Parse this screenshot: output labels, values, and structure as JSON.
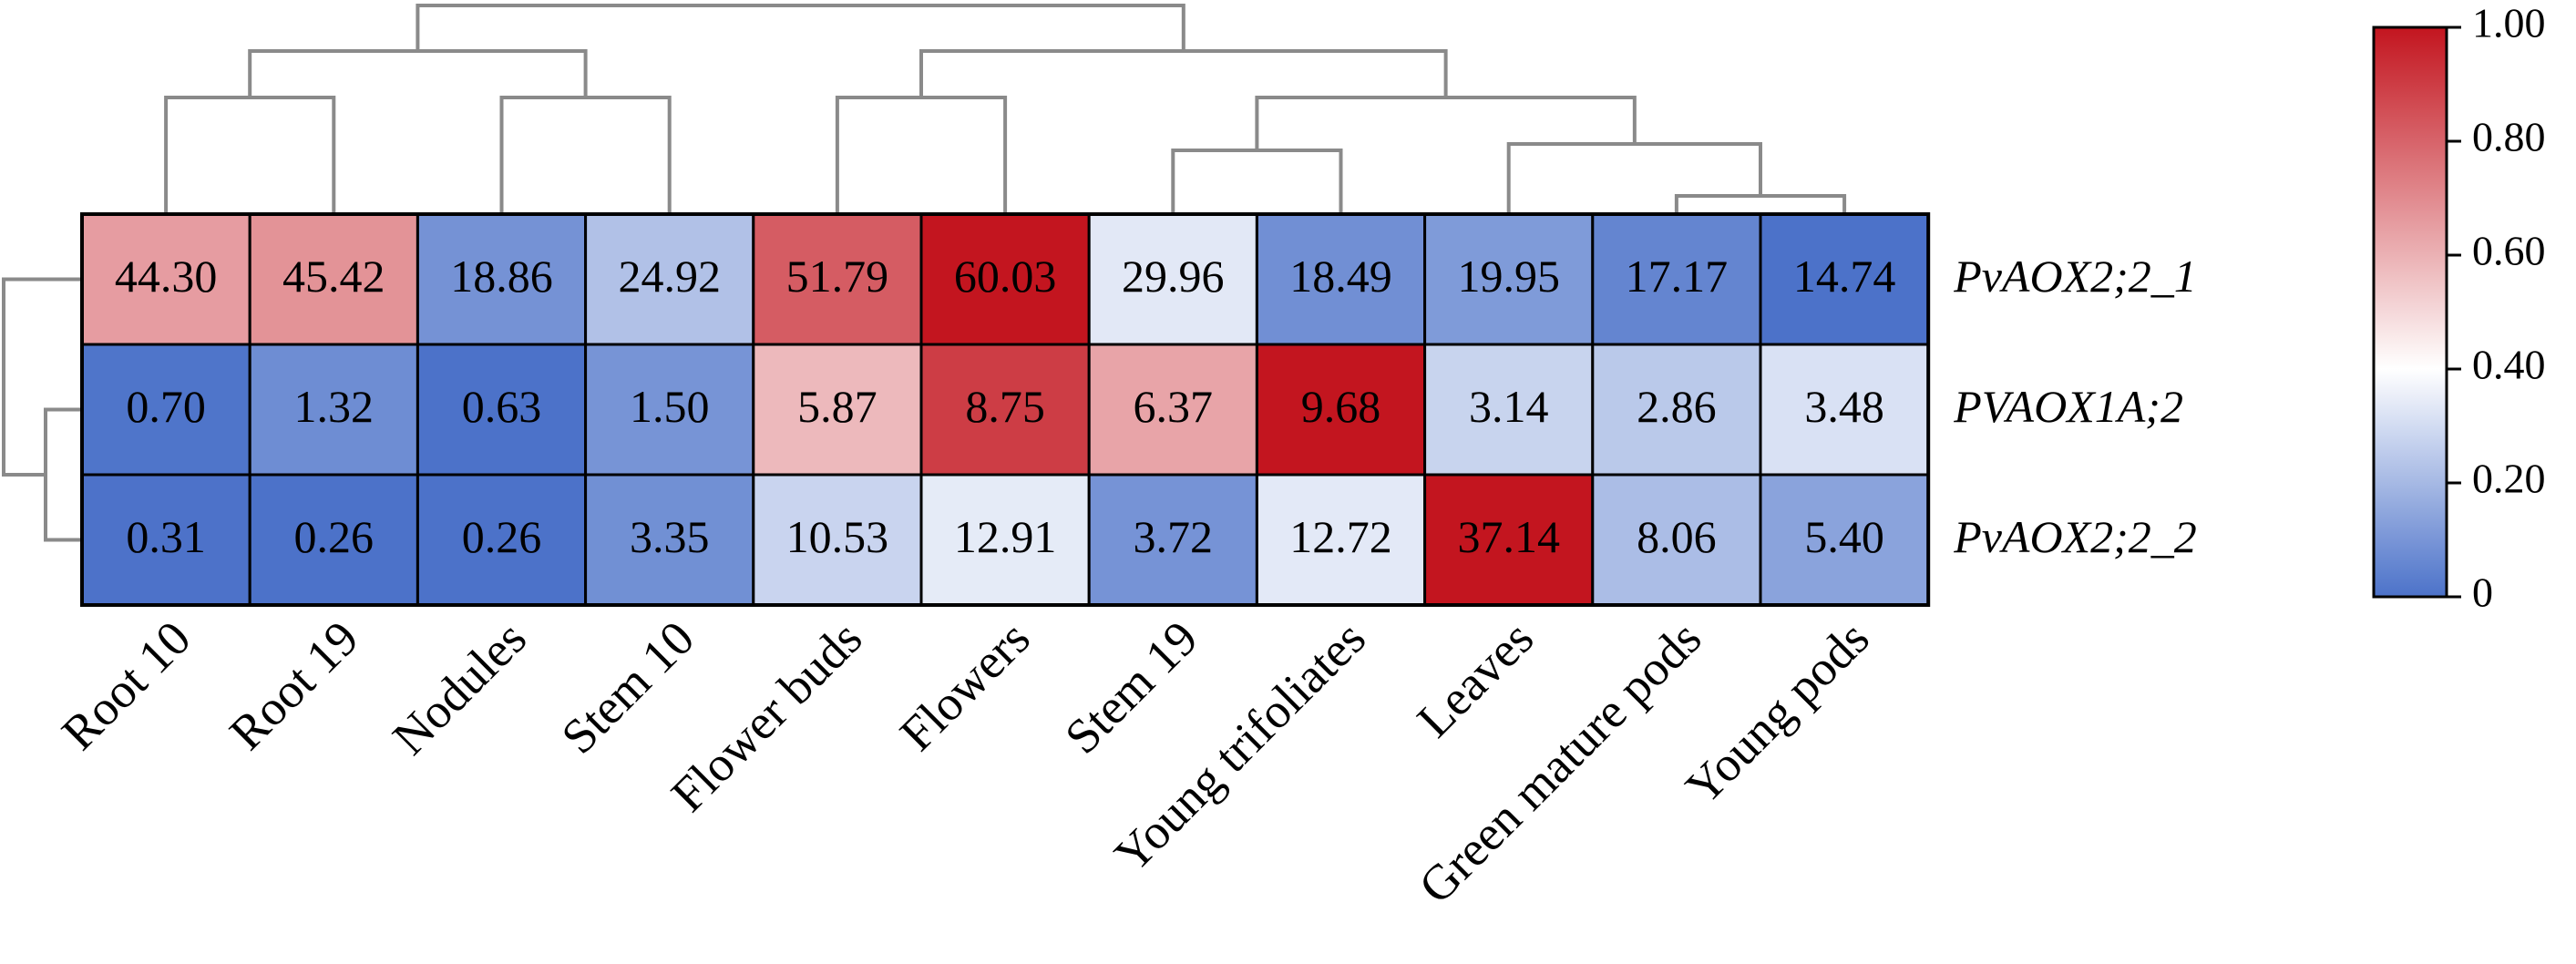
{
  "chart_data": {
    "type": "heatmap",
    "title": "",
    "xlabel": "",
    "ylabel": "",
    "columns": [
      "Root 10",
      "Root 19",
      "Nodules",
      "Stem 10",
      "Flower buds",
      "Flowers",
      "Stem 19",
      "Young trifoliates",
      "Leaves",
      "Green mature pods",
      "Young pods"
    ],
    "rows": [
      "PvAOX2;2_1",
      "PVAOX1A;2",
      "PvAOX2;2_2"
    ],
    "values": [
      [
        "44.30",
        "45.42",
        "18.86",
        "24.92",
        "51.79",
        "60.03",
        "29.96",
        "18.49",
        "19.95",
        "17.17",
        "14.74"
      ],
      [
        "0.70",
        "1.32",
        "0.63",
        "1.50",
        "5.87",
        "8.75",
        "6.37",
        "9.68",
        "3.14",
        "2.86",
        "3.48"
      ],
      [
        "0.31",
        "0.26",
        "0.26",
        "3.35",
        "10.53",
        "12.91",
        "3.72",
        "12.72",
        "37.14",
        "8.06",
        "5.40"
      ]
    ],
    "normalization": "row-wise min-max scaling (0 to 1)",
    "colorbar": {
      "range": [
        0,
        1
      ],
      "ticks": [
        "1.00",
        "0.80",
        "0.60",
        "0.40",
        "0.20",
        "0"
      ],
      "colormap": "blue-white-red",
      "colors": {
        "low": "#4c72c9",
        "mid": "#ffffff",
        "high": "#c3151f"
      },
      "midpoint": 0.4
    },
    "column_dendrogram": true,
    "row_dendrogram": true,
    "legend_position": "right"
  }
}
